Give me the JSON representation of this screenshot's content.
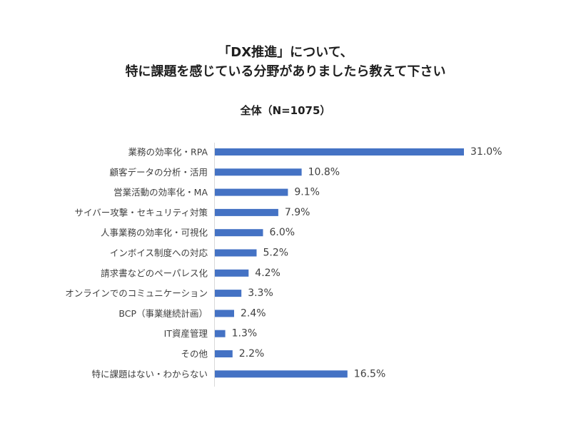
{
  "title_lines": [
    "「DX推進」について、",
    "特に課題を感じている分野がありましたら教えて下さい"
  ],
  "colors": {
    "bar": "#4472C4",
    "axis": "#d9d9d9",
    "text": "#404040"
  },
  "chart_data": {
    "type": "bar",
    "orientation": "horizontal",
    "title": "「DX推進」について、特に課題を感じている分野がありましたら教えて下さい",
    "subtitle": "全体（N=1075）",
    "unit": "%",
    "categories": [
      "業務の効率化・RPA",
      "顧客データの分析・活用",
      "営業活動の効率化・MA",
      "サイバー攻撃・セキュリティ対策",
      "人事業務の効率化・可視化",
      "インボイス制度への対応",
      "請求書などのペーパレス化",
      "オンラインでのコミュニケーション",
      "BCP（事業継続計画）",
      "IT資産管理",
      "その他",
      "特に課題はない・わからない"
    ],
    "values": [
      31.0,
      10.8,
      9.1,
      7.9,
      6.0,
      5.2,
      4.2,
      3.3,
      2.4,
      1.3,
      2.2,
      16.5
    ],
    "value_labels": [
      "31.0%",
      "10.8%",
      "9.1%",
      "7.9%",
      "6.0%",
      "5.2%",
      "4.2%",
      "3.3%",
      "2.4%",
      "1.3%",
      "2.2%",
      "16.5%"
    ],
    "xlim": [
      0,
      35
    ],
    "grid": false,
    "legend": "none"
  }
}
